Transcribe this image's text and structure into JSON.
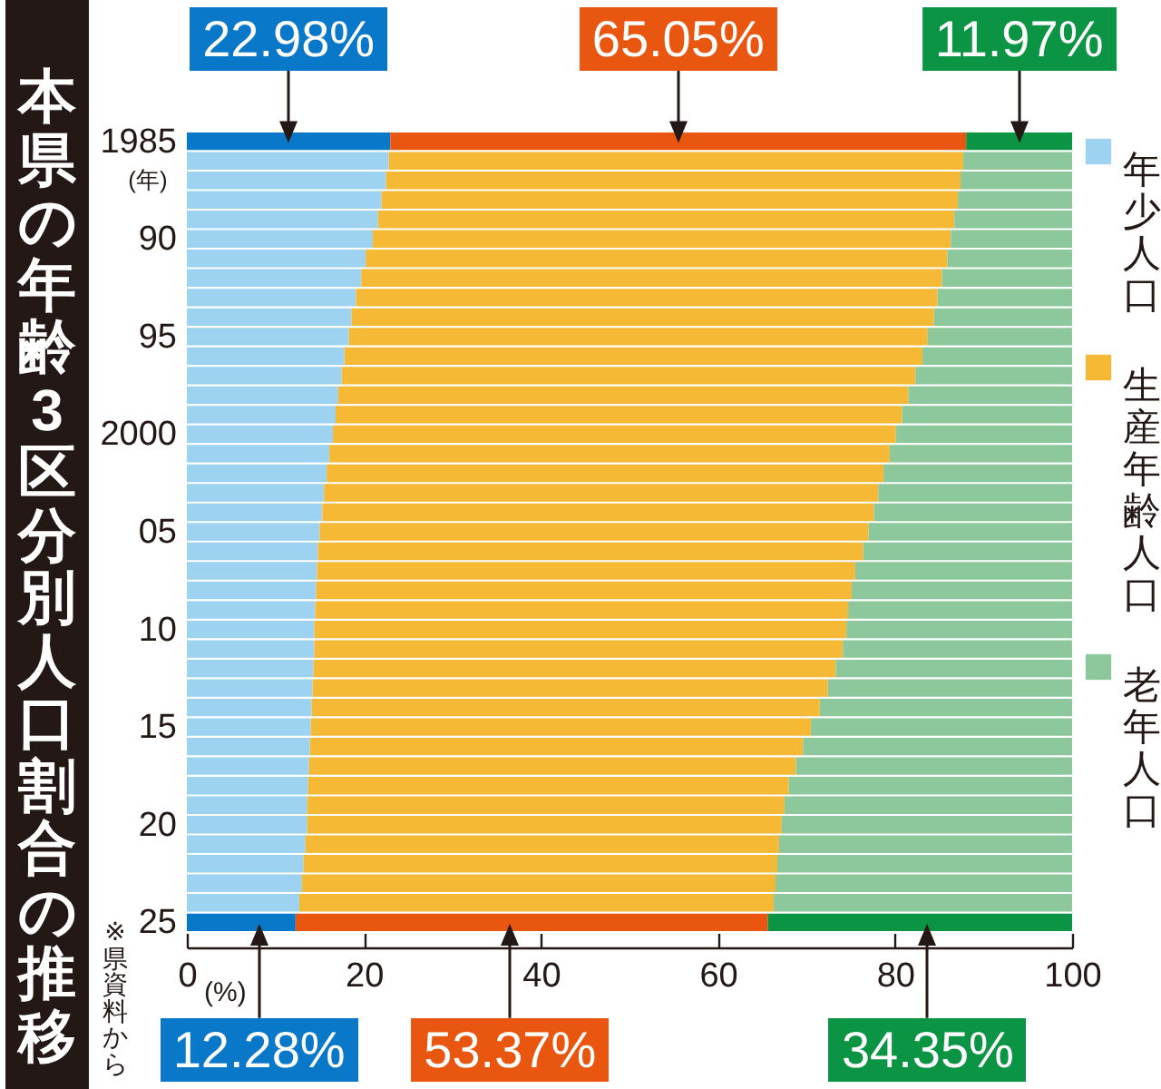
{
  "chart_data": {
    "type": "bar",
    "title": "本県の年齢3区分別人口割合の推移",
    "ylabel": "(年)",
    "xlabel": "(%)",
    "annotations": [
      "※県資料から"
    ],
    "orientation": "horizontal",
    "stacked": true,
    "legend": "right",
    "categories": [
      "1985",
      null,
      null,
      null,
      null,
      "90",
      null,
      null,
      null,
      null,
      "95",
      null,
      null,
      null,
      null,
      "2000",
      null,
      null,
      null,
      null,
      "05",
      null,
      null,
      null,
      null,
      "10",
      null,
      null,
      null,
      null,
      "15",
      null,
      null,
      null,
      null,
      "20",
      null,
      null,
      null,
      null,
      "25"
    ],
    "xlim": [
      0,
      100
    ],
    "xticks": [
      0,
      20,
      40,
      60,
      80,
      100
    ],
    "series": [
      {
        "name": "年少人口",
        "color": "#9dd3f1",
        "colors": [
          "#0a78c8",
          "#9dd3f1",
          "#9dd3f1",
          "#9dd3f1",
          "#9dd3f1",
          "#9dd3f1",
          "#9dd3f1",
          "#9dd3f1",
          "#9dd3f1",
          "#9dd3f1",
          "#9dd3f1",
          "#9dd3f1",
          "#9dd3f1",
          "#9dd3f1",
          "#9dd3f1",
          "#9dd3f1",
          "#9dd3f1",
          "#9dd3f1",
          "#9dd3f1",
          "#9dd3f1",
          "#9dd3f1",
          "#9dd3f1",
          "#9dd3f1",
          "#9dd3f1",
          "#9dd3f1",
          "#9dd3f1",
          "#9dd3f1",
          "#9dd3f1",
          "#9dd3f1",
          "#9dd3f1",
          "#9dd3f1",
          "#9dd3f1",
          "#9dd3f1",
          "#9dd3f1",
          "#9dd3f1",
          "#9dd3f1",
          "#9dd3f1",
          "#9dd3f1",
          "#9dd3f1",
          "#9dd3f1",
          "#0a78c8"
        ],
        "values": [
          22.98,
          22.8,
          22.5,
          22.0,
          21.6,
          21.0,
          20.2,
          19.7,
          19.1,
          18.6,
          18.3,
          17.8,
          17.5,
          17.1,
          16.8,
          16.5,
          16.1,
          15.8,
          15.5,
          15.3,
          15.0,
          14.8,
          14.7,
          14.6,
          14.5,
          14.4,
          14.4,
          14.3,
          14.2,
          14.1,
          14.0,
          13.9,
          13.8,
          13.7,
          13.6,
          13.6,
          13.4,
          13.2,
          13.0,
          12.7,
          12.28
        ],
        "value_labels": [
          "22.98%",
          null,
          null,
          null,
          null,
          null,
          null,
          null,
          null,
          null,
          null,
          null,
          null,
          null,
          null,
          null,
          null,
          null,
          null,
          null,
          null,
          null,
          null,
          null,
          null,
          null,
          null,
          null,
          null,
          null,
          null,
          null,
          null,
          null,
          null,
          null,
          null,
          null,
          null,
          null,
          "12.28%"
        ]
      },
      {
        "name": "生産年齢人口",
        "color": "#f6b935",
        "colors": [
          "#e8560f",
          "#f6b935",
          "#f6b935",
          "#f6b935",
          "#f6b935",
          "#f6b935",
          "#f6b935",
          "#f6b935",
          "#f6b935",
          "#f6b935",
          "#f6b935",
          "#f6b935",
          "#f6b935",
          "#f6b935",
          "#f6b935",
          "#f6b935",
          "#f6b935",
          "#f6b935",
          "#f6b935",
          "#f6b935",
          "#f6b935",
          "#f6b935",
          "#f6b935",
          "#f6b935",
          "#f6b935",
          "#f6b935",
          "#f6b935",
          "#f6b935",
          "#f6b935",
          "#f6b935",
          "#f6b935",
          "#f6b935",
          "#f6b935",
          "#f6b935",
          "#f6b935",
          "#f6b935",
          "#f6b935",
          "#f6b935",
          "#f6b935",
          "#f6b935",
          "#e8560f"
        ],
        "values": [
          65.05,
          64.9,
          64.9,
          65.1,
          65.1,
          65.3,
          65.7,
          65.6,
          65.7,
          65.8,
          65.4,
          65.3,
          64.8,
          64.4,
          64.0,
          63.6,
          63.3,
          62.9,
          62.6,
          62.3,
          62.0,
          61.6,
          60.8,
          60.5,
          60.2,
          60.1,
          59.7,
          59.0,
          58.2,
          57.4,
          56.5,
          55.7,
          55.0,
          54.3,
          53.9,
          53.6,
          53.5,
          53.5,
          53.5,
          53.6,
          53.37
        ],
        "value_labels": [
          "65.05%",
          null,
          null,
          null,
          null,
          null,
          null,
          null,
          null,
          null,
          null,
          null,
          null,
          null,
          null,
          null,
          null,
          null,
          null,
          null,
          null,
          null,
          null,
          null,
          null,
          null,
          null,
          null,
          null,
          null,
          null,
          null,
          null,
          null,
          null,
          null,
          null,
          null,
          null,
          null,
          "53.37%"
        ]
      },
      {
        "name": "老年人口",
        "color": "#8dc89c",
        "colors": [
          "#0a9444",
          "#8dc89c",
          "#8dc89c",
          "#8dc89c",
          "#8dc89c",
          "#8dc89c",
          "#8dc89c",
          "#8dc89c",
          "#8dc89c",
          "#8dc89c",
          "#8dc89c",
          "#8dc89c",
          "#8dc89c",
          "#8dc89c",
          "#8dc89c",
          "#8dc89c",
          "#8dc89c",
          "#8dc89c",
          "#8dc89c",
          "#8dc89c",
          "#8dc89c",
          "#8dc89c",
          "#8dc89c",
          "#8dc89c",
          "#8dc89c",
          "#8dc89c",
          "#8dc89c",
          "#8dc89c",
          "#8dc89c",
          "#8dc89c",
          "#8dc89c",
          "#8dc89c",
          "#8dc89c",
          "#8dc89c",
          "#8dc89c",
          "#8dc89c",
          "#8dc89c",
          "#8dc89c",
          "#8dc89c",
          "#8dc89c",
          "#0a9444"
        ],
        "values": [
          11.97,
          12.3,
          12.6,
          12.9,
          13.3,
          13.7,
          14.1,
          14.7,
          15.2,
          15.6,
          16.3,
          16.9,
          17.7,
          18.5,
          19.2,
          19.9,
          20.6,
          21.3,
          21.9,
          22.4,
          23.0,
          23.6,
          24.5,
          24.9,
          25.3,
          25.5,
          25.9,
          26.7,
          27.6,
          28.5,
          29.5,
          30.4,
          31.2,
          32.0,
          32.5,
          32.8,
          33.1,
          33.3,
          33.5,
          33.7,
          34.35
        ],
        "value_labels": [
          "11.97%",
          null,
          null,
          null,
          null,
          null,
          null,
          null,
          null,
          null,
          null,
          null,
          null,
          null,
          null,
          null,
          null,
          null,
          null,
          null,
          null,
          null,
          null,
          null,
          null,
          null,
          null,
          null,
          null,
          null,
          null,
          null,
          null,
          null,
          null,
          null,
          null,
          null,
          null,
          null,
          "34.35%"
        ]
      }
    ]
  }
}
